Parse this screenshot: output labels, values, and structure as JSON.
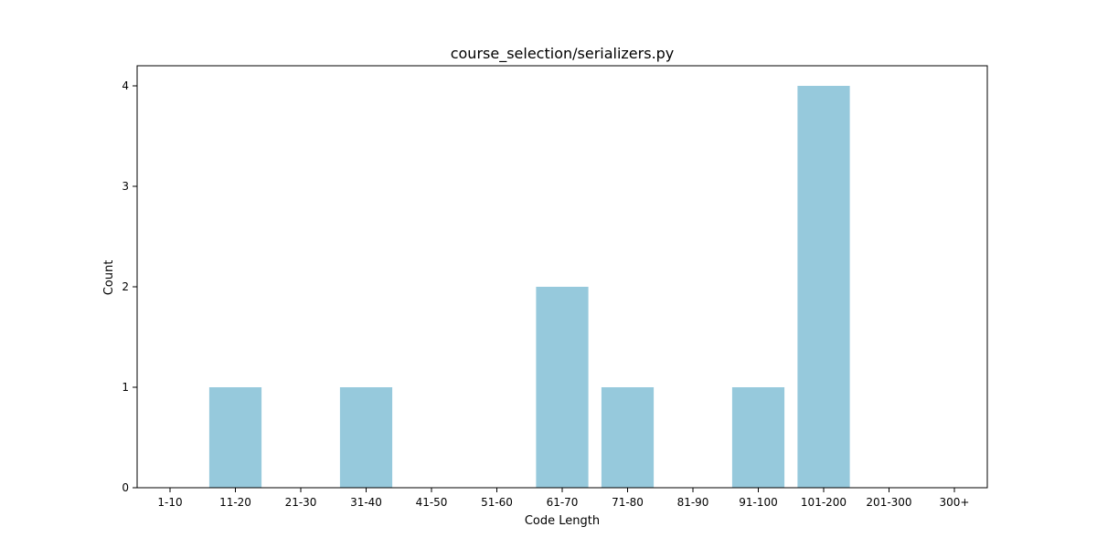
{
  "chart_data": {
    "type": "bar",
    "title": "course_selection/serializers.py",
    "xlabel": "Code Length",
    "ylabel": "Count",
    "categories": [
      "1-10",
      "11-20",
      "21-30",
      "31-40",
      "41-50",
      "51-60",
      "61-70",
      "71-80",
      "81-90",
      "91-100",
      "101-200",
      "201-300",
      "300+"
    ],
    "values": [
      0,
      1,
      0,
      1,
      0,
      0,
      2,
      1,
      0,
      1,
      4,
      0,
      0
    ],
    "yticks": [
      0,
      1,
      2,
      3,
      4
    ],
    "ylim": [
      0,
      4.2
    ],
    "bar_color": "#96c9dc",
    "grid": false,
    "legend": "none"
  }
}
